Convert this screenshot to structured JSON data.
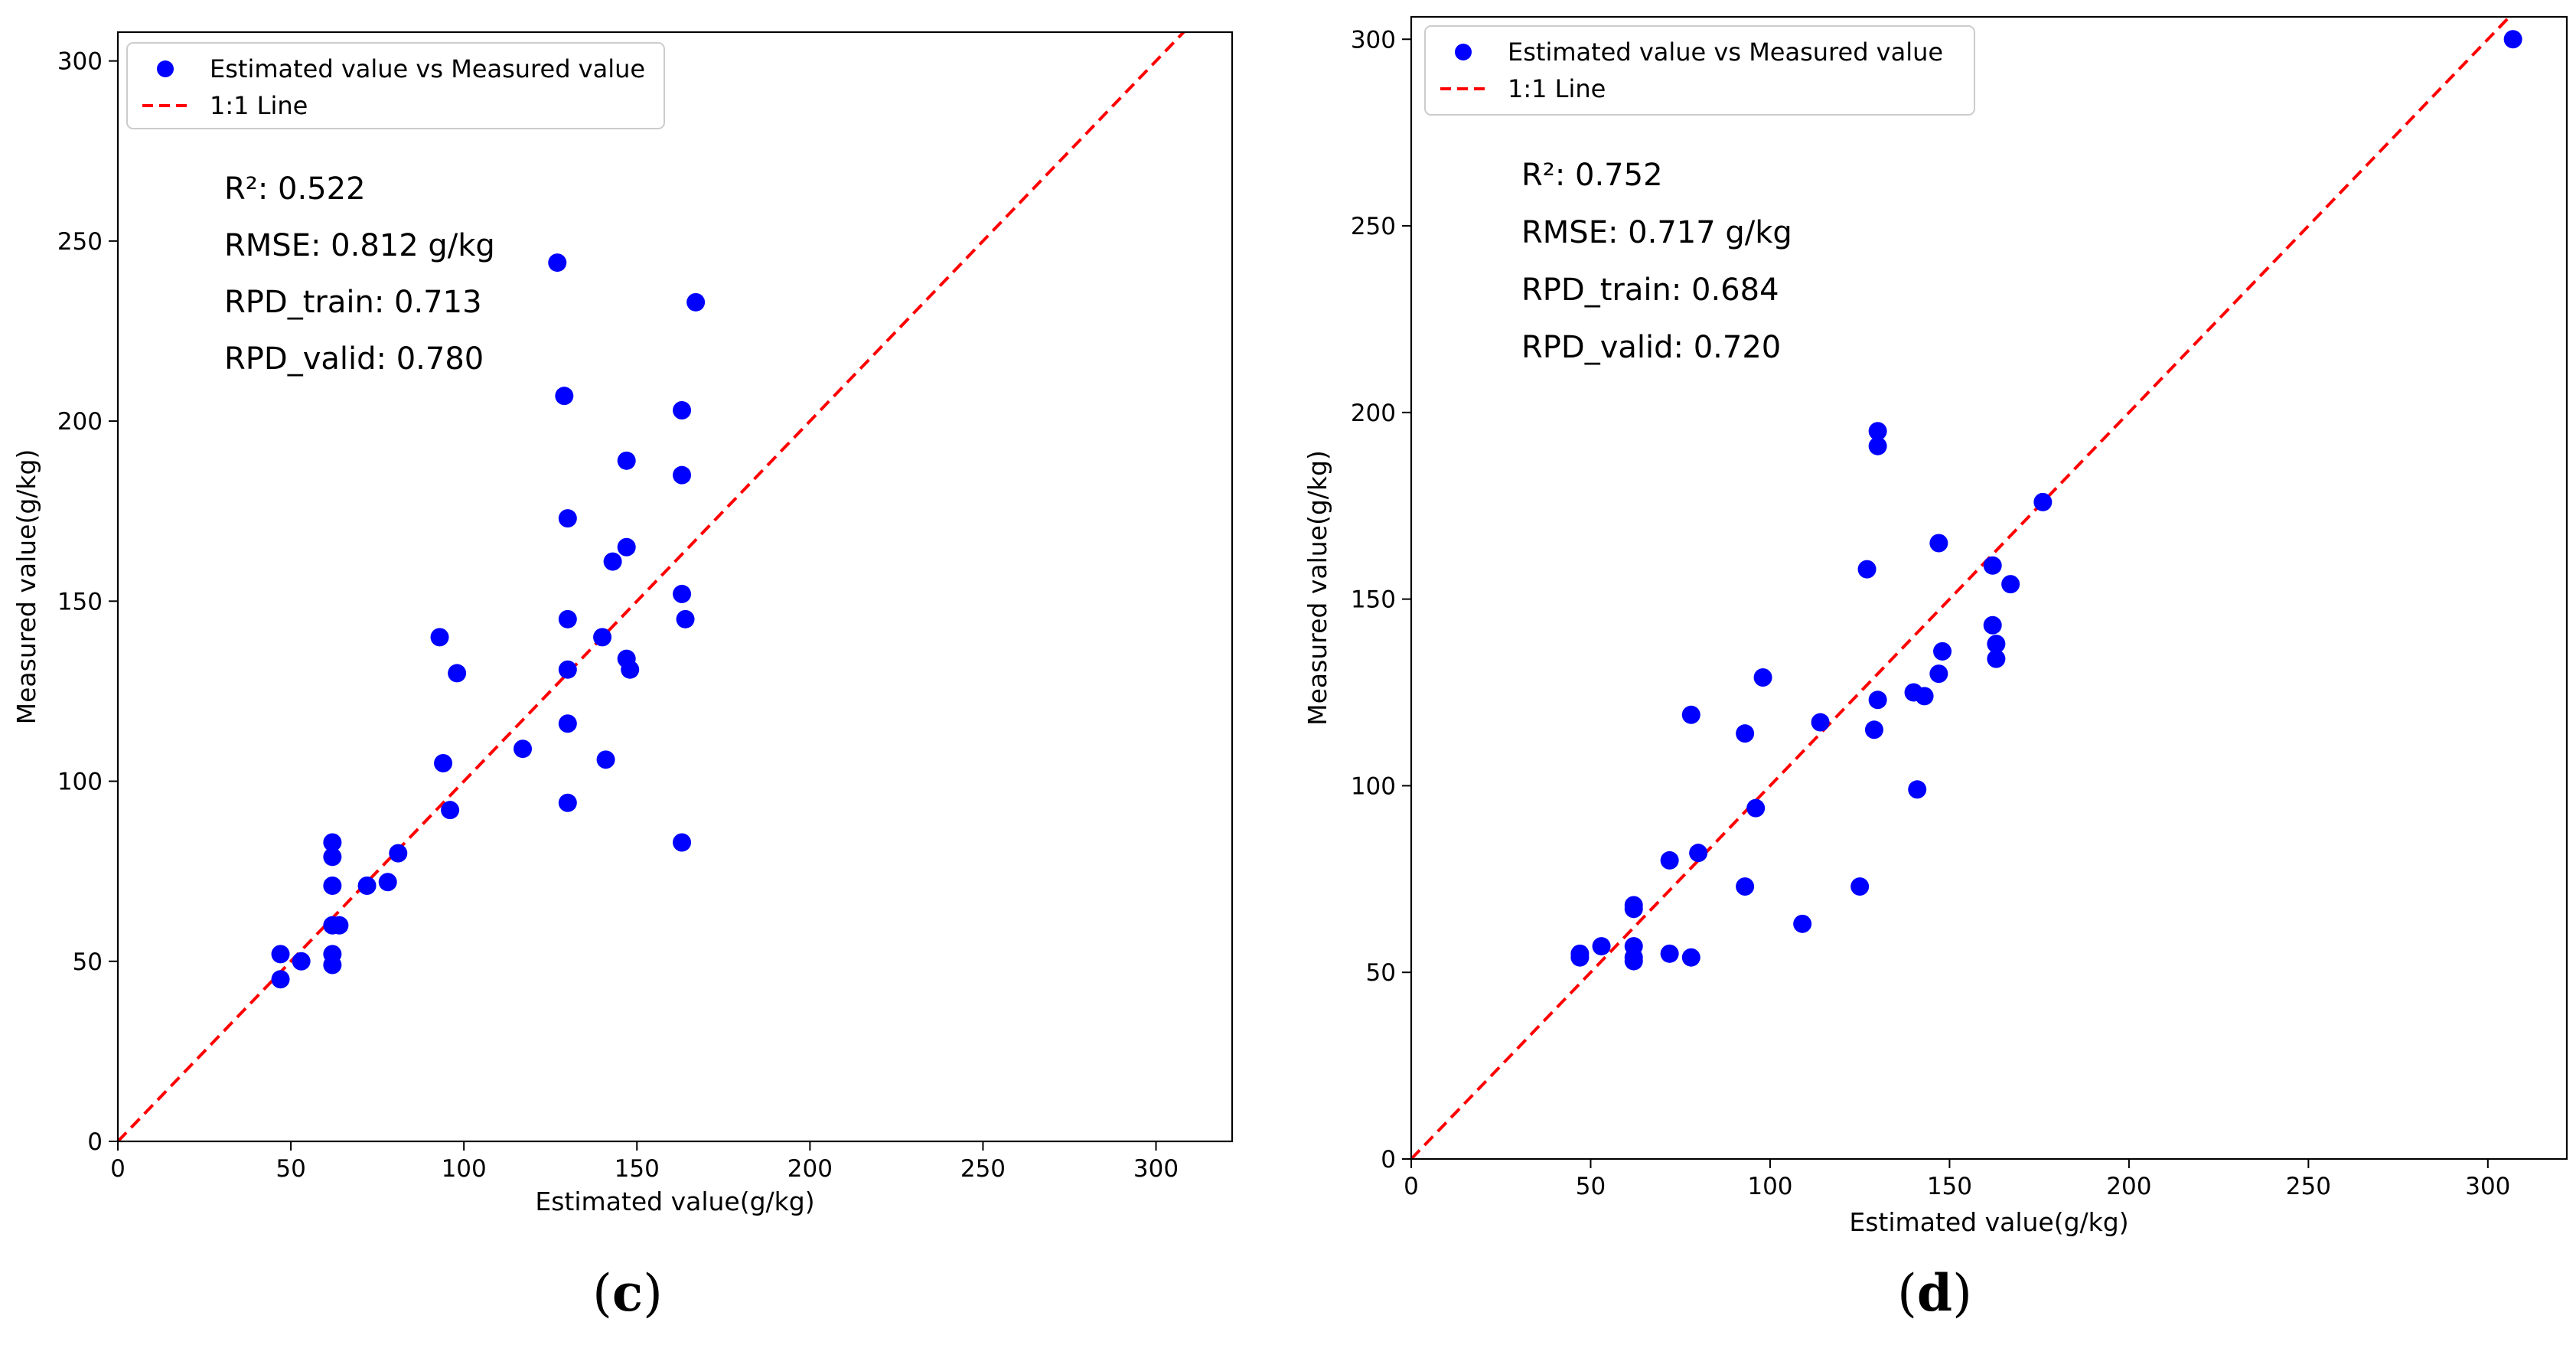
{
  "colors": {
    "points": "#0000ff",
    "line": "#ff0000",
    "axes": "#000000",
    "legend_border": "#cccccc"
  },
  "chart_data": [
    {
      "panel": "c",
      "type": "scatter",
      "xlabel": "Estimated value(g/kg)",
      "ylabel": "Measured value(g/kg)",
      "xlim": [
        0,
        322
      ],
      "ylim": [
        0,
        308
      ],
      "xticks": [
        0,
        50,
        100,
        150,
        200,
        250,
        300
      ],
      "yticks": [
        0,
        50,
        100,
        150,
        200,
        250,
        300
      ],
      "legend": {
        "position": "top-left",
        "points_label": "Estimated value vs Measured value",
        "line_label": "1:1 Line"
      },
      "metrics": [
        "R²: 0.522",
        "RMSE: 0.812 g/kg",
        "RPD_train: 0.713",
        "RPD_valid: 0.780"
      ],
      "series": [
        {
          "name": "Estimated value vs Measured value",
          "points": [
            [
              47,
              45
            ],
            [
              47,
              52
            ],
            [
              53,
              50
            ],
            [
              62,
              49
            ],
            [
              62,
              52
            ],
            [
              62,
              60
            ],
            [
              62,
              71
            ],
            [
              62,
              79
            ],
            [
              62,
              83
            ],
            [
              64,
              60
            ],
            [
              72,
              71
            ],
            [
              78,
              72
            ],
            [
              81,
              80
            ],
            [
              93,
              140
            ],
            [
              94,
              105
            ],
            [
              96,
              92
            ],
            [
              98,
              130
            ],
            [
              117,
              109
            ],
            [
              127,
              244
            ],
            [
              129,
              207
            ],
            [
              130,
              173
            ],
            [
              130,
              145
            ],
            [
              130,
              131
            ],
            [
              130,
              116
            ],
            [
              130,
              94
            ],
            [
              140,
              140
            ],
            [
              141,
              106
            ],
            [
              143,
              161
            ],
            [
              147,
              189
            ],
            [
              147,
              165
            ],
            [
              147,
              134
            ],
            [
              148,
              131
            ],
            [
              163,
              203
            ],
            [
              163,
              185
            ],
            [
              163,
              152
            ],
            [
              163,
              83
            ],
            [
              164,
              145
            ],
            [
              167,
              233
            ]
          ]
        },
        {
          "name": "1:1 Line",
          "line": [
            [
              0,
              0
            ],
            [
              308,
              308
            ]
          ]
        }
      ]
    },
    {
      "panel": "d",
      "type": "scatter",
      "xlabel": "Estimated value(g/kg)",
      "ylabel": "Measured value(g/kg)",
      "xlim": [
        0,
        322
      ],
      "ylim": [
        0,
        306
      ],
      "xticks": [
        0,
        50,
        100,
        150,
        200,
        250,
        300
      ],
      "yticks": [
        0,
        50,
        100,
        150,
        200,
        250,
        300
      ],
      "legend": {
        "position": "top-left",
        "points_label": "Estimated value vs Measured value",
        "line_label": "1:1 Line"
      },
      "metrics": [
        "R²: 0.752",
        "RMSE: 0.717 g/kg",
        "RPD_train: 0.684",
        "RPD_valid: 0.720"
      ],
      "series": [
        {
          "name": "Estimated value vs Measured value",
          "points": [
            [
              47,
              54
            ],
            [
              47,
              55
            ],
            [
              53,
              57
            ],
            [
              62,
              53
            ],
            [
              62,
              54
            ],
            [
              62,
              57
            ],
            [
              62,
              67
            ],
            [
              62,
              68
            ],
            [
              72,
              55
            ],
            [
              72,
              80
            ],
            [
              78,
              54
            ],
            [
              78,
              119
            ],
            [
              80,
              82
            ],
            [
              93,
              73
            ],
            [
              93,
              114
            ],
            [
              96,
              94
            ],
            [
              98,
              129
            ],
            [
              109,
              63
            ],
            [
              114,
              117
            ],
            [
              125,
              73
            ],
            [
              127,
              158
            ],
            [
              129,
              115
            ],
            [
              130,
              123
            ],
            [
              130,
              191
            ],
            [
              130,
              195
            ],
            [
              140,
              125
            ],
            [
              141,
              99
            ],
            [
              143,
              124
            ],
            [
              147,
              130
            ],
            [
              147,
              165
            ],
            [
              148,
              136
            ],
            [
              162,
              143
            ],
            [
              162,
              159
            ],
            [
              163,
              134
            ],
            [
              163,
              138
            ],
            [
              167,
              154
            ],
            [
              176,
              176
            ],
            [
              307,
              300
            ]
          ]
        },
        {
          "name": "1:1 Line",
          "line": [
            [
              0,
              0
            ],
            [
              306,
              306
            ]
          ]
        }
      ]
    }
  ],
  "panel_labels": [
    {
      "open": "(",
      "letter": "c",
      "close": ")"
    },
    {
      "open": "(",
      "letter": "d",
      "close": ")"
    }
  ]
}
